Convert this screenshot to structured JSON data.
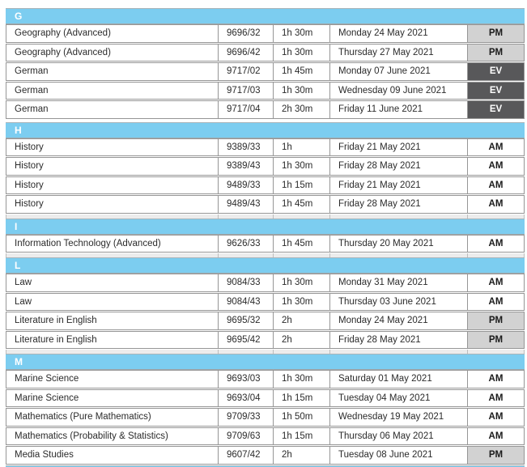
{
  "document": {
    "kind": "exam-timetable-table",
    "year_shown": "2021"
  },
  "colors": {
    "section_band": "#7ccdf0",
    "section_letter_text": "#ffffff",
    "session_am_bg": "#ffffff",
    "session_pm_bg": "#d2d2d2",
    "session_ev_bg": "#58585a",
    "session_ev_text": "#ffffff",
    "row_border": "#969696",
    "body_text": "#2b2b2b"
  },
  "sections": [
    {
      "letter": "G",
      "rows": [
        {
          "subject": "Geography (Advanced)",
          "code": "9696/32",
          "duration": "1h 30m",
          "date": "Monday 24 May 2021",
          "session": "PM"
        },
        {
          "subject": "Geography (Advanced)",
          "code": "9696/42",
          "duration": "1h 30m",
          "date": "Thursday 27 May 2021",
          "session": "PM"
        },
        {
          "subject": "German",
          "code": "9717/02",
          "duration": "1h 45m",
          "date": "Monday 07 June 2021",
          "session": "EV"
        },
        {
          "subject": "German",
          "code": "9717/03",
          "duration": "1h 30m",
          "date": "Wednesday 09 June 2021",
          "session": "EV"
        },
        {
          "subject": "German",
          "code": "9717/04",
          "duration": "2h 30m",
          "date": "Friday 11 June 2021",
          "session": "EV"
        }
      ]
    },
    {
      "letter": "H",
      "rows": [
        {
          "subject": "History",
          "code": "9389/33",
          "duration": "1h",
          "date": "Friday 21 May 2021",
          "session": "AM"
        },
        {
          "subject": "History",
          "code": "9389/43",
          "duration": "1h 30m",
          "date": "Friday 28 May 2021",
          "session": "AM"
        },
        {
          "subject": "History",
          "code": "9489/33",
          "duration": "1h 15m",
          "date": "Friday 21 May 2021",
          "session": "AM"
        },
        {
          "subject": "History",
          "code": "9489/43",
          "duration": "1h 45m",
          "date": "Friday 28 May 2021",
          "session": "AM"
        }
      ]
    },
    {
      "letter": "I",
      "rows": [
        {
          "subject": "Information Technology (Advanced)",
          "code": "9626/33",
          "duration": "1h 45m",
          "date": "Thursday 20 May 2021",
          "session": "AM"
        }
      ]
    },
    {
      "letter": "L",
      "rows": [
        {
          "subject": "Law",
          "code": "9084/33",
          "duration": "1h 30m",
          "date": "Monday 31 May 2021",
          "session": "AM"
        },
        {
          "subject": "Law",
          "code": "9084/43",
          "duration": "1h 30m",
          "date": "Thursday 03 June 2021",
          "session": "AM"
        },
        {
          "subject": "Literature in English",
          "code": "9695/32",
          "duration": "2h",
          "date": "Monday 24 May 2021",
          "session": "PM"
        },
        {
          "subject": "Literature in English",
          "code": "9695/42",
          "duration": "2h",
          "date": "Friday 28 May 2021",
          "session": "PM"
        }
      ]
    },
    {
      "letter": "M",
      "rows": [
        {
          "subject": "Marine Science",
          "code": "9693/03",
          "duration": "1h 30m",
          "date": "Saturday 01 May 2021",
          "session": "AM"
        },
        {
          "subject": "Marine Science",
          "code": "9693/04",
          "duration": "1h 15m",
          "date": "Tuesday 04 May 2021",
          "session": "AM"
        },
        {
          "subject": "Mathematics (Pure Mathematics)",
          "code": "9709/33",
          "duration": "1h 50m",
          "date": "Wednesday 19 May 2021",
          "session": "AM"
        },
        {
          "subject": "Mathematics (Probability & Statistics)",
          "code": "9709/63",
          "duration": "1h 15m",
          "date": "Thursday 06 May 2021",
          "session": "AM"
        },
        {
          "subject": "Media Studies",
          "code": "9607/42",
          "duration": "2h",
          "date": "Tuesday 08 June 2021",
          "session": "PM"
        }
      ]
    }
  ]
}
